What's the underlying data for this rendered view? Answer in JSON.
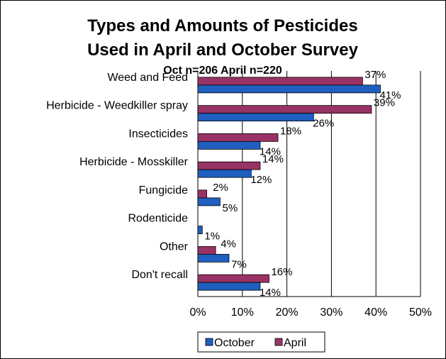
{
  "chart_data": {
    "type": "bar",
    "orientation": "horizontal",
    "title_line1": "Types and Amounts of Pesticides",
    "title_line2": "Used in April and October Survey",
    "subtitle": "Oct n=206  April n=220",
    "categories": [
      "Weed and Feed",
      "Herbicide - Weedkiller spray",
      "Insecticides",
      "Herbicide - Mosskiller",
      "Fungicide",
      "Rodenticide",
      "Other",
      "Don't recall"
    ],
    "series": [
      {
        "name": "October",
        "color": "#1f5fbf",
        "values": [
          41,
          26,
          14,
          12,
          5,
          1,
          7,
          14
        ],
        "labels": [
          "41%",
          "26%",
          "14%",
          "12%",
          "5%",
          "1%",
          "7%",
          "14%"
        ]
      },
      {
        "name": "April",
        "color": "#993366",
        "values": [
          37,
          39,
          18,
          14,
          2,
          0,
          4,
          16
        ],
        "labels": [
          "37%",
          "39%",
          "18%",
          "14%",
          "2%",
          "",
          "4%",
          "16%"
        ]
      }
    ],
    "xlim": [
      0,
      50
    ],
    "xticks": [
      "0%",
      "10%",
      "20%",
      "30%",
      "40%",
      "50%"
    ],
    "grid": true,
    "legend_position": "bottom"
  }
}
